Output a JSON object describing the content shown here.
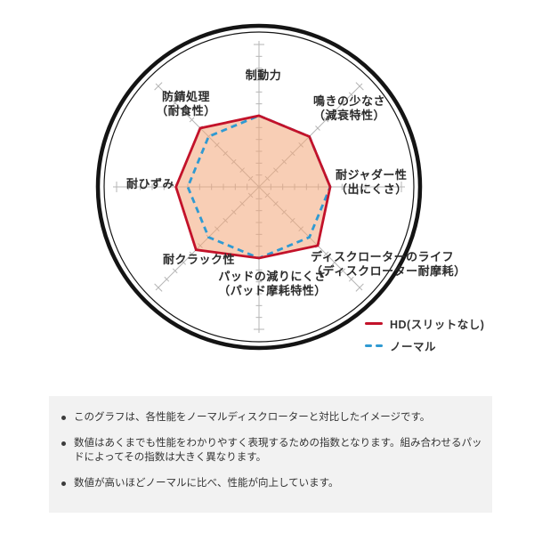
{
  "chart_data": {
    "type": "radar",
    "title": "",
    "axes": [
      {
        "label": "制動力",
        "sub": ""
      },
      {
        "label": "鳴きの少なさ",
        "sub": "（減衰特性）"
      },
      {
        "label": "耐ジャダー性",
        "sub": "（出にくさ）"
      },
      {
        "label": "ディスクローターのライフ",
        "sub": "（ディスクローター耐摩耗）"
      },
      {
        "label": "パッドの減りにくさ",
        "sub": "（パッド摩耗特性）"
      },
      {
        "label": "耐クラック性",
        "sub": ""
      },
      {
        "label": "耐ひずみ",
        "sub": ""
      },
      {
        "label": "防錆処理",
        "sub": "（耐食性）"
      }
    ],
    "scale": {
      "min": 0,
      "max": 12,
      "tick_step": 1,
      "grid": "ticks"
    },
    "series": [
      {
        "name": "HD(スリットなし)",
        "style": "solid",
        "color": "#c3122a",
        "values": [
          6,
          6,
          6,
          7,
          6,
          7.5,
          7,
          7
        ]
      },
      {
        "name": "ノーマル",
        "style": "dashed",
        "color": "#2f9ad2",
        "values": [
          6,
          6,
          6,
          6,
          6,
          6,
          6,
          6
        ]
      }
    ],
    "fill": {
      "color": "#f2a678",
      "opacity": 0.55
    },
    "legend_position": "bottom-right"
  },
  "colors": {
    "accent_red": "#c3122a",
    "accent_blue": "#2f9ad2",
    "ring_black": "#141414",
    "grid_gray": "#b5b5b5",
    "panel_bg": "#f2f2f2"
  },
  "notes": [
    "このグラフは、各性能をノーマルディスクローターと対比したイメージです。",
    "数値はあくまでも性能をわかりやすく表現するための指数となります。組み合わせるパッドによってその指数は大きく異なります。",
    "数値が高いほどノーマルに比べ、性能が向上しています。"
  ]
}
